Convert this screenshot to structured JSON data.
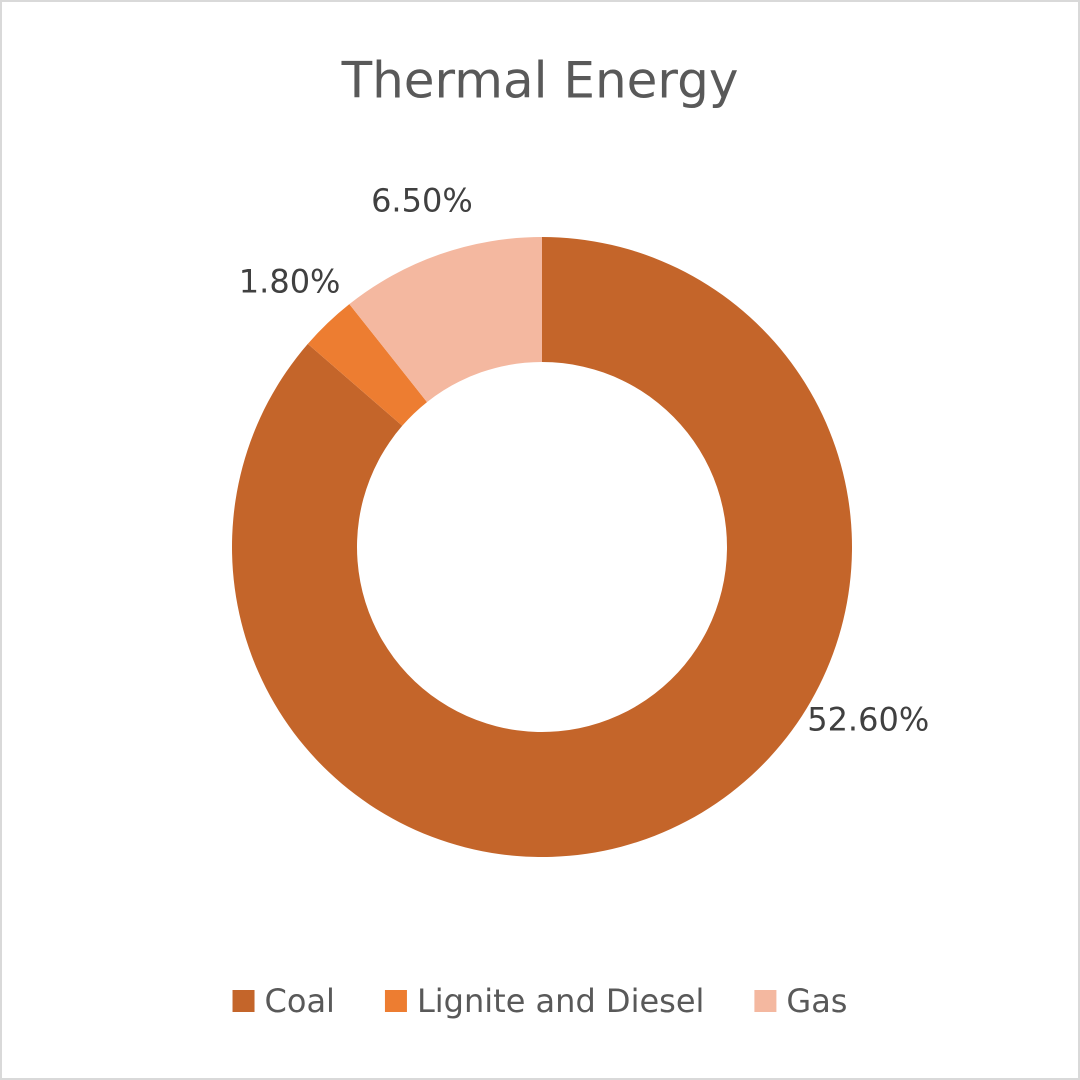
{
  "chart_data": {
    "type": "donut",
    "title": "Thermal Energy",
    "categories": [
      "Coal",
      "Lignite and Diesel",
      "Gas"
    ],
    "values": [
      52.6,
      1.8,
      6.5
    ],
    "value_labels": [
      "52.60%",
      "1.80%",
      "6.50%"
    ],
    "colors": [
      "#c4652a",
      "#ed7d31",
      "#f4b8a0"
    ],
    "legend": "bottom"
  }
}
